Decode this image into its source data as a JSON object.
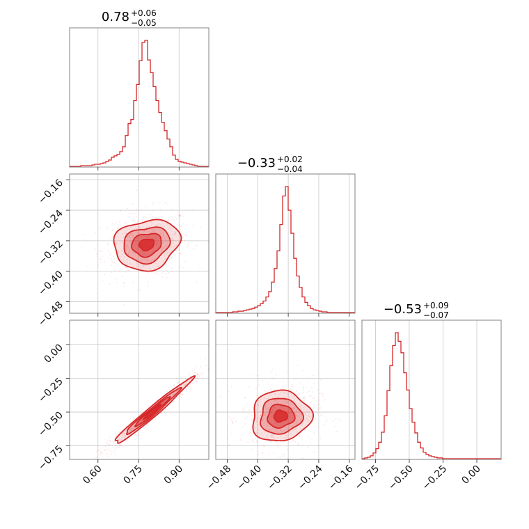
{
  "chart_data": {
    "type": "corner",
    "color": "#d62728",
    "parameters": [
      {
        "title_value": "0.78",
        "title_plus": "+0.06",
        "title_minus": "−0.05",
        "range": [
          0.495,
          1.01
        ],
        "ticks": [
          0.6,
          0.75,
          0.9
        ],
        "tick_labels": [
          "0.60",
          "0.75",
          "0.90"
        ],
        "hist_bins": [
          1,
          1,
          1,
          1,
          2,
          2,
          2,
          2,
          3,
          4,
          4,
          5,
          6,
          8,
          10,
          14,
          16,
          18,
          22,
          29,
          45,
          62,
          68,
          95,
          118,
          152,
          178,
          181,
          153,
          135,
          115,
          95,
          78,
          64,
          52,
          40,
          29,
          17,
          11,
          8,
          7,
          6,
          5,
          4,
          3,
          2,
          1,
          1,
          1,
          1
        ]
      },
      {
        "title_value": "−0.33",
        "title_plus": "+0.02",
        "title_minus": "−0.04",
        "range": [
          -0.51,
          -0.145
        ],
        "ticks": [
          -0.48,
          -0.4,
          -0.32,
          -0.24,
          -0.16
        ],
        "tick_labels": [
          "−0.48",
          "−0.40",
          "−0.32",
          "−0.24",
          "−0.16"
        ],
        "hist_bins": [
          1,
          1,
          1,
          1,
          1,
          1,
          2,
          2,
          3,
          3,
          4,
          5,
          6,
          7,
          9,
          11,
          14,
          18,
          24,
          32,
          46,
          66,
          92,
          131,
          173,
          187,
          152,
          118,
          81,
          55,
          38,
          24,
          16,
          11,
          7,
          5,
          4,
          3,
          2,
          2,
          1,
          1,
          1,
          1,
          1,
          1,
          1,
          1,
          1,
          1
        ]
      },
      {
        "title_value": "−0.53",
        "title_plus": "+0.09",
        "title_minus": "−0.07",
        "range": [
          -0.85,
          0.18
        ],
        "ticks": [
          -0.75,
          -0.5,
          -0.25,
          0.0
        ],
        "tick_labels": [
          "−0.75",
          "−0.50",
          "−0.25",
          "0.00"
        ],
        "hist_bins": [
          1,
          2,
          3,
          5,
          9,
          15,
          24,
          38,
          61,
          96,
          131,
          159,
          177,
          165,
          149,
          121,
          97,
          71,
          52,
          37,
          24,
          16,
          10,
          7,
          5,
          4,
          3,
          2,
          2,
          1,
          1,
          1,
          1,
          1,
          1,
          1,
          1,
          1,
          1,
          1,
          1,
          1,
          1,
          1,
          1,
          1,
          1,
          1,
          1,
          1
        ]
      }
    ],
    "pairs": [
      {
        "x": 0,
        "y": 1,
        "center": [
          0.78,
          -0.33
        ],
        "spread": [
          0.055,
          0.03
        ],
        "rho": 0.15
      },
      {
        "x": 0,
        "y": 2,
        "center": [
          0.8,
          -0.5
        ],
        "spread": [
          0.065,
          0.11
        ],
        "rho": 0.98
      },
      {
        "x": 1,
        "y": 2,
        "center": [
          -0.34,
          -0.53
        ],
        "spread": [
          0.035,
          0.085
        ],
        "rho": 0.05
      }
    ]
  }
}
